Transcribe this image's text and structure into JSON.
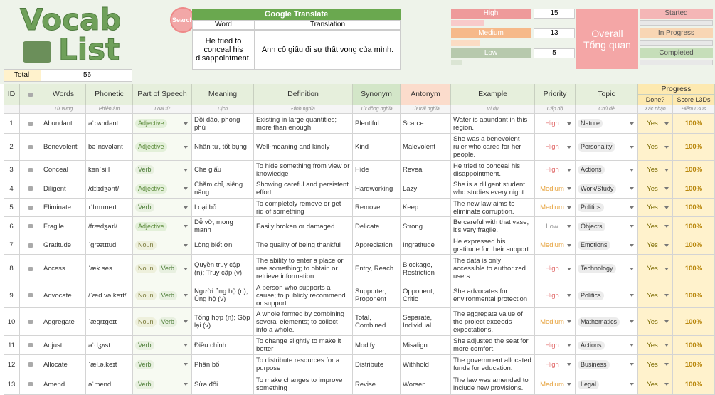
{
  "header": {
    "logo_line1": "Vocab",
    "logo_line2": "List",
    "search": "Search",
    "translate": {
      "title": "Google Translate",
      "col_word": "Word",
      "col_translation": "Translation",
      "word": "He tried to conceal his disappointment.",
      "translation": "Anh cố giấu đi sự thất vọng của mình."
    },
    "total_label": "Total",
    "total_value": 56,
    "levels": [
      {
        "label": "High",
        "count": 15
      },
      {
        "label": "Medium",
        "count": 13
      },
      {
        "label": "Low",
        "count": 5
      }
    ],
    "overall": {
      "title": "Overall",
      "subtitle": "Tổng quan"
    },
    "progress": [
      "Started",
      "In Progress",
      "Completed"
    ]
  },
  "table": {
    "columns": [
      {
        "name": "ID"
      },
      {
        "name": ""
      },
      {
        "name": "Words",
        "sub": "Từ vựng"
      },
      {
        "name": "Phonetic",
        "sub": "Phiên âm"
      },
      {
        "name": "Part of Speech",
        "sub": "Loại từ"
      },
      {
        "name": "Meaning",
        "sub": "Dịch"
      },
      {
        "name": "Definition",
        "sub": "Định nghĩa"
      },
      {
        "name": "Synonym",
        "sub": "Từ đồng nghĩa"
      },
      {
        "name": "Antonym",
        "sub": "Từ trái nghĩa"
      },
      {
        "name": "Example",
        "sub": "Ví dụ"
      },
      {
        "name": "Priority",
        "sub": "Cấp độ"
      },
      {
        "name": "Topic",
        "sub": "Chủ đề"
      },
      {
        "name": "Done?",
        "sub": "Xác nhận"
      },
      {
        "name": "Score L3Ds",
        "sub": "Điểm L3Ds"
      }
    ],
    "group": "Progress",
    "rows": [
      {
        "id": 1,
        "word": "Abundant",
        "phonetic": "əˈbʌndənt",
        "pos": [
          "Adjective"
        ],
        "meaning": "Dồi dào, phong phú",
        "definition": "Existing in large quantities; more than enough",
        "synonym": "Plentiful",
        "antonym": "Scarce",
        "example": "Water is abundant in this region.",
        "priority": "High",
        "topic": "Nature",
        "done": "Yes",
        "score": "100%"
      },
      {
        "id": 2,
        "word": "Benevolent",
        "phonetic": "bəˈnɛvələnt",
        "pos": [
          "Adjective"
        ],
        "meaning": "Nhân từ, tốt bụng",
        "definition": "Well-meaning and kindly",
        "synonym": "Kind",
        "antonym": "Malevolent",
        "example": "She was a benevolent ruler who cared for her people.",
        "priority": "High",
        "topic": "Personality",
        "done": "Yes",
        "score": "100%"
      },
      {
        "id": 3,
        "word": "Conceal",
        "phonetic": "kənˈsiːl",
        "pos": [
          "Verb"
        ],
        "meaning": "Che giấu",
        "definition": "To hide something from view or knowledge",
        "synonym": "Hide",
        "antonym": "Reveal",
        "example": "He tried to conceal his disappointment.",
        "priority": "High",
        "topic": "Actions",
        "done": "Yes",
        "score": "100%"
      },
      {
        "id": 4,
        "word": "Diligent",
        "phonetic": "/dɪlɪdʒənt/",
        "pos": [
          "Adjective"
        ],
        "meaning": "Chăm chỉ, siêng năng",
        "definition": "Showing careful and persistent effort",
        "synonym": "Hardworking",
        "antonym": "Lazy",
        "example": "She is a diligent student who studies every night.",
        "priority": "Medium",
        "topic": "Work/Study",
        "done": "Yes",
        "score": "100%"
      },
      {
        "id": 5,
        "word": "Eliminate",
        "phonetic": "ɪˈlɪmɪneɪt",
        "pos": [
          "Verb"
        ],
        "meaning": "Loại bỏ",
        "definition": "To completely remove or get rid of something",
        "synonym": "Remove",
        "antonym": "Keep",
        "example": "The new law aims to eliminate corruption.",
        "priority": "Medium",
        "topic": "Politics",
        "done": "Yes",
        "score": "100%"
      },
      {
        "id": 6,
        "word": "Fragile",
        "phonetic": "/frædʒaɪl/",
        "pos": [
          "Adjective"
        ],
        "meaning": "Dễ vỡ, mong manh",
        "definition": "Easily broken or damaged",
        "synonym": "Delicate",
        "antonym": "Strong",
        "example": "Be careful with that vase, it's very fragile.",
        "priority": "Low",
        "topic": "Objects",
        "done": "Yes",
        "score": "100%"
      },
      {
        "id": 7,
        "word": "Gratitude",
        "phonetic": "ˈɡrætɪtud",
        "pos": [
          "Noun"
        ],
        "meaning": "Lòng biết ơn",
        "definition": "The quality of being thankful",
        "synonym": "Appreciation",
        "antonym": "Ingratitude",
        "example": "He expressed his gratitude for their support.",
        "priority": "Medium",
        "topic": "Emotions",
        "done": "Yes",
        "score": "100%"
      },
      {
        "id": 8,
        "word": "Access",
        "phonetic": "ˈæk.ses",
        "pos": [
          "Noun",
          "Verb"
        ],
        "meaning": "Quyền truy cập (n); Truy cập (v)",
        "definition": "The ability to enter a place or use something; to obtain or retrieve information.",
        "synonym": "Entry, Reach",
        "antonym": "Blockage, Restriction",
        "example": "The data is only accessible to authorized users",
        "priority": "High",
        "topic": "Technology",
        "done": "Yes",
        "score": "100%"
      },
      {
        "id": 9,
        "word": "Advocate",
        "phonetic": "/ˈæd.və.keɪt/",
        "pos": [
          "Noun",
          "Verb"
        ],
        "meaning": "Người ủng hộ (n); Ủng hộ (v)",
        "definition": "A person who supports a cause; to publicly recommend or support.",
        "synonym": "Supporter, Proponent",
        "antonym": "Opponent, Critic",
        "example": "She advocates for environmental protection",
        "priority": "High",
        "topic": "Politics",
        "done": "Yes",
        "score": "100%"
      },
      {
        "id": 10,
        "word": "Aggregate",
        "phonetic": "ˈæɡrɪɡeɪt",
        "pos": [
          "Noun",
          "Verb"
        ],
        "meaning": "Tổng hợp (n); Gộp lại (v)",
        "definition": "A whole formed by combining several elements; to collect into a whole.",
        "synonym": "Total, Combined",
        "antonym": "Separate, Individual",
        "example": "The aggregate value of the project exceeds expectations.",
        "priority": "Medium",
        "topic": "Mathematics",
        "done": "Yes",
        "score": "100%"
      },
      {
        "id": 11,
        "word": "Adjust",
        "phonetic": "əˈdʒʌst",
        "pos": [
          "Verb"
        ],
        "meaning": "Điều chỉnh",
        "definition": "To change slightly to make it better",
        "synonym": "Modify",
        "antonym": "Misalign",
        "example": "She adjusted the seat for more comfort.",
        "priority": "High",
        "topic": "Actions",
        "done": "Yes",
        "score": "100%"
      },
      {
        "id": 12,
        "word": "Allocate",
        "phonetic": "ˈæl.ə.keɪt",
        "pos": [
          "Verb"
        ],
        "meaning": "Phân bổ",
        "definition": "To distribute resources for a purpose",
        "synonym": "Distribute",
        "antonym": "Withhold",
        "example": "The government allocated funds for education.",
        "priority": "High",
        "topic": "Business",
        "done": "Yes",
        "score": "100%"
      },
      {
        "id": 13,
        "word": "Amend",
        "phonetic": "əˈmend",
        "pos": [
          "Verb"
        ],
        "meaning": "Sửa đổi",
        "definition": "To make changes to improve something",
        "synonym": "Revise",
        "antonym": "Worsen",
        "example": "The law was amended to include new provisions.",
        "priority": "Medium",
        "topic": "Legal",
        "done": "Yes",
        "score": "100%"
      }
    ]
  }
}
